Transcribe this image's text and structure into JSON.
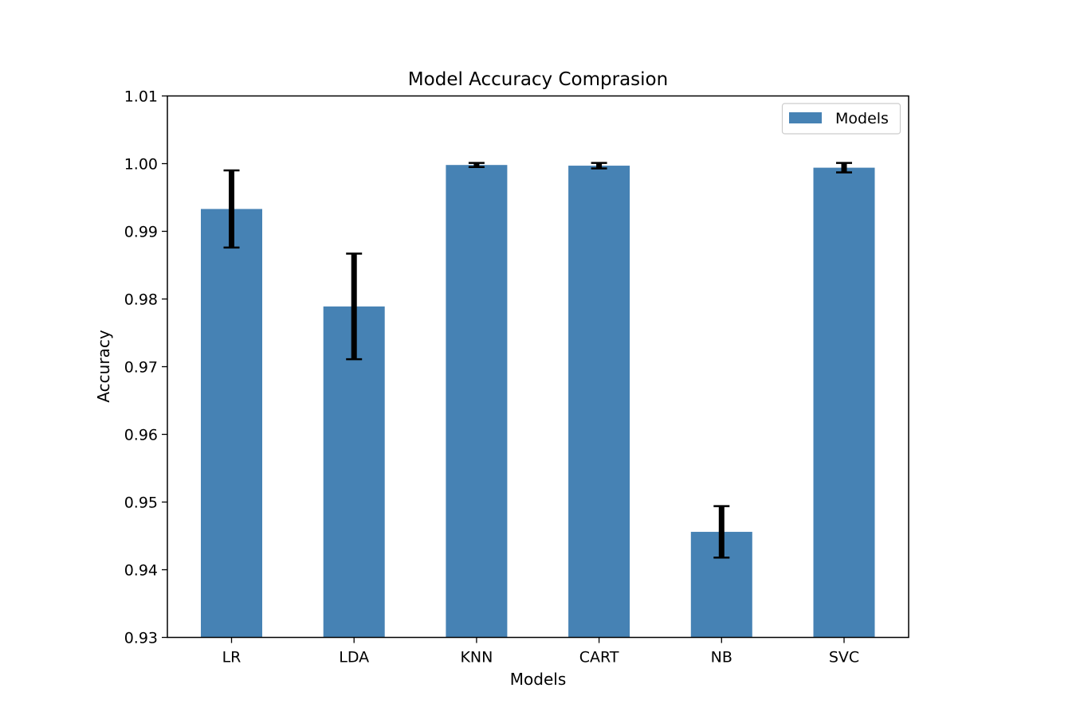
{
  "chart_data": {
    "type": "bar",
    "title": "Model Accuracy Comprasion",
    "xlabel": "Models",
    "ylabel": "Accuracy",
    "categories": [
      "LR",
      "LDA",
      "KNN",
      "CART",
      "NB",
      "SVC"
    ],
    "series": [
      {
        "name": "Models",
        "values": [
          0.9933,
          0.9789,
          0.9998,
          0.9997,
          0.9456,
          0.9994
        ],
        "errors": [
          0.0057,
          0.0078,
          0.0003,
          0.0004,
          0.0038,
          0.0007
        ],
        "color": "#4682b4"
      }
    ],
    "ylim": [
      0.93,
      1.01
    ],
    "yticks": [
      "0.93",
      "0.94",
      "0.95",
      "0.96",
      "0.97",
      "0.98",
      "0.99",
      "1.00",
      "1.01"
    ],
    "grid": false,
    "legend_position": "top-right",
    "error_bar_color": "#000000"
  }
}
